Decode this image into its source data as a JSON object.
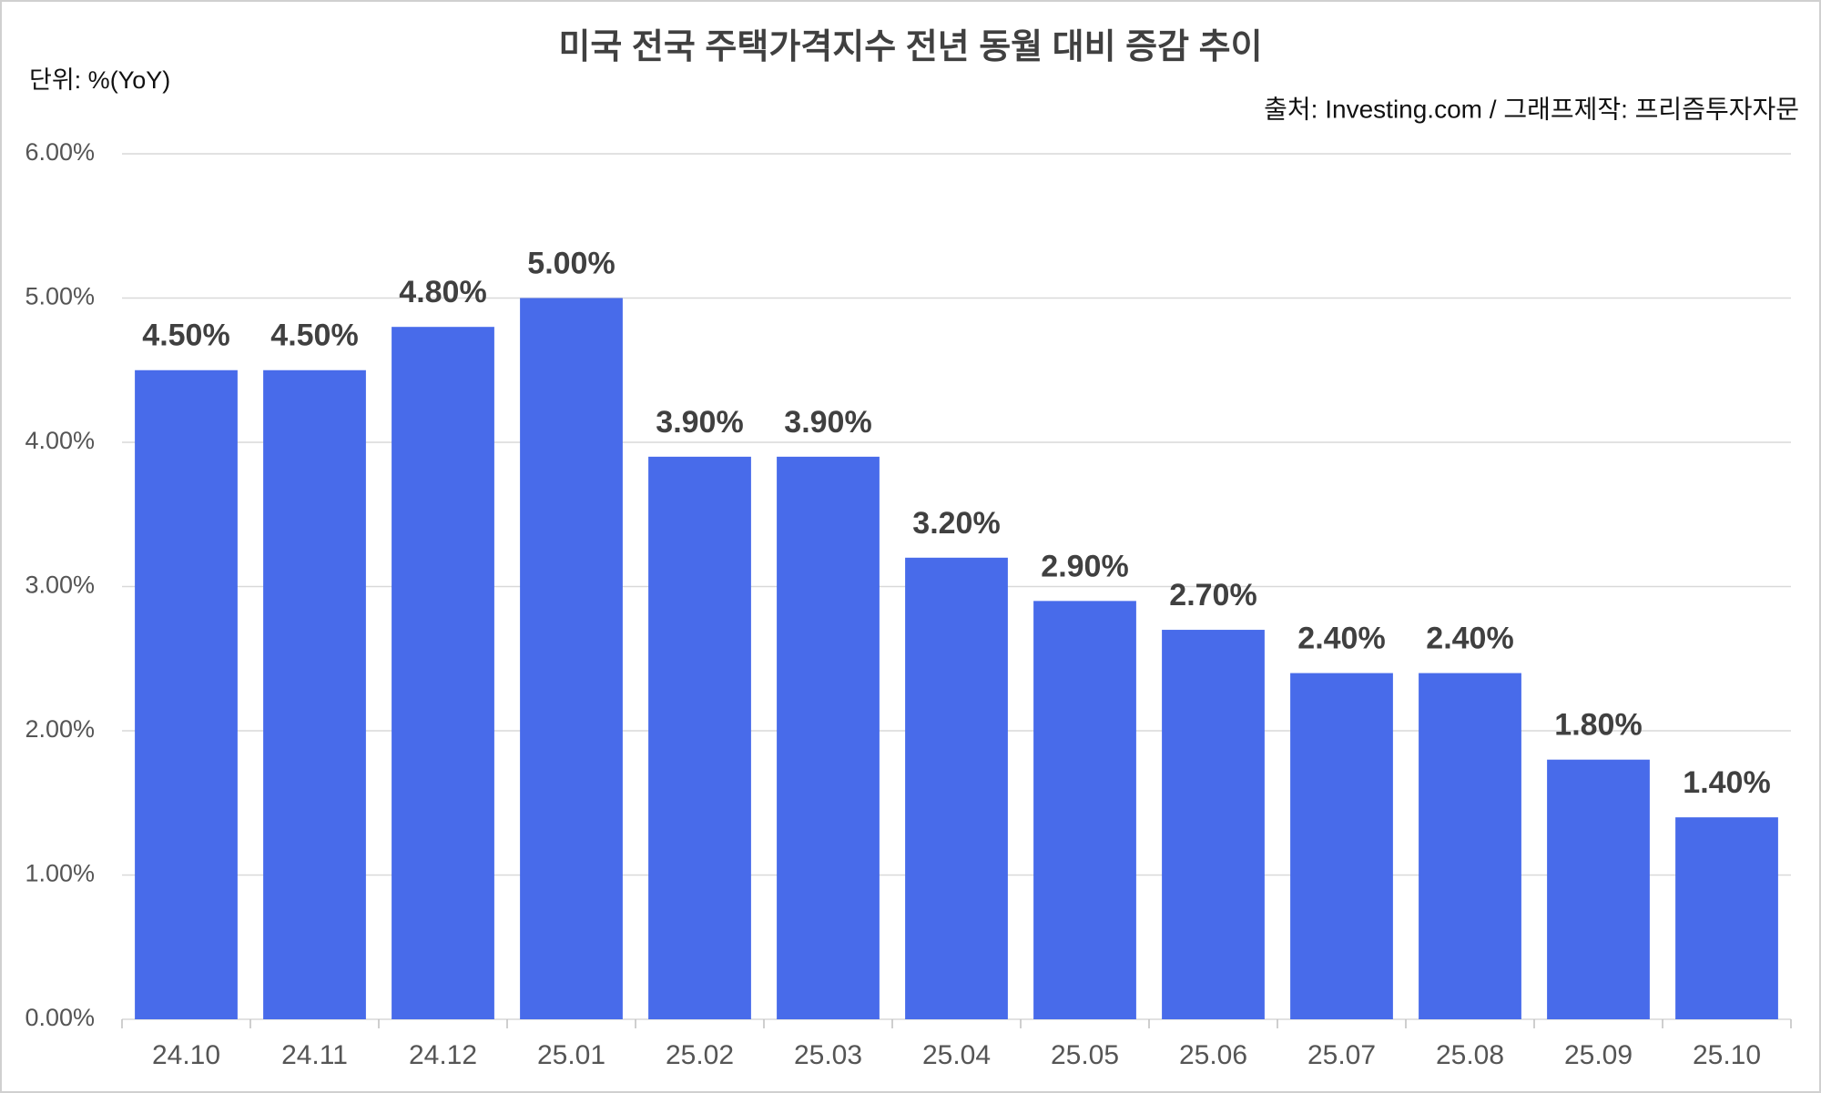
{
  "chart_data": {
    "type": "bar",
    "title": "미국 전국 주택가격지수 전년 동월 대비 증감 추이",
    "unit_note": "단위: %(YoY)",
    "source": "출처: Investing.com / 그래프제작: 프리즘투자자문",
    "categories": [
      "24.10",
      "24.11",
      "24.12",
      "25.01",
      "25.02",
      "25.03",
      "25.04",
      "25.05",
      "25.06",
      "25.07",
      "25.08",
      "25.09",
      "25.10"
    ],
    "values": [
      4.5,
      4.5,
      4.8,
      5.0,
      3.9,
      3.9,
      3.2,
      2.9,
      2.7,
      2.4,
      2.4,
      1.8,
      1.4
    ],
    "value_labels": [
      "4.50%",
      "4.50%",
      "4.80%",
      "5.00%",
      "3.90%",
      "3.90%",
      "3.20%",
      "2.90%",
      "2.70%",
      "2.40%",
      "2.40%",
      "1.80%",
      "1.40%"
    ],
    "color": "#486bea",
    "ylim": [
      0,
      6
    ],
    "yticks": [
      {
        "value": 0,
        "label": "0.00%"
      },
      {
        "value": 1,
        "label": "1.00%"
      },
      {
        "value": 2,
        "label": "2.00%"
      },
      {
        "value": 3,
        "label": "3.00%"
      },
      {
        "value": 4,
        "label": "4.00%"
      },
      {
        "value": 5,
        "label": "5.00%"
      },
      {
        "value": 6,
        "label": "6.00%"
      }
    ],
    "grid": true
  }
}
